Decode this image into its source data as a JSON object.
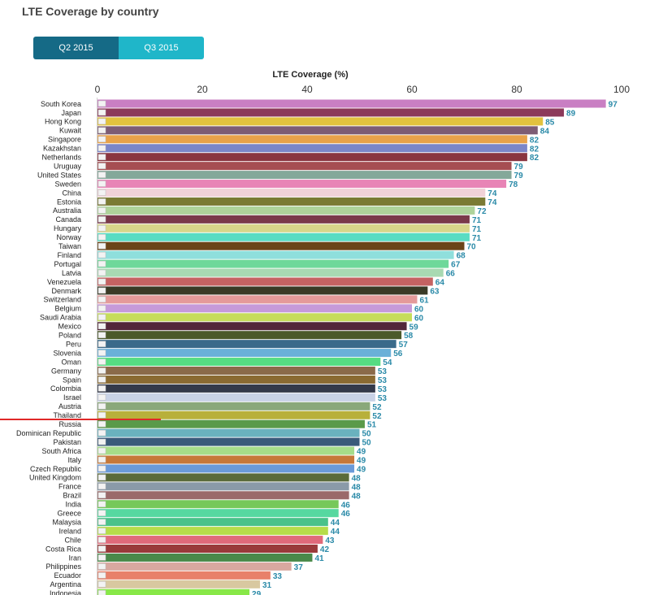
{
  "page": {
    "title": "LTE Coverage by country"
  },
  "tabs": [
    {
      "label": "Q2 2015",
      "active": true
    },
    {
      "label": "Q3 2015",
      "active": false
    }
  ],
  "chart_data": {
    "type": "bar",
    "orientation": "horizontal",
    "xlabel": "LTE Coverage (%)",
    "xlim": [
      0,
      100
    ],
    "ticks": [
      0,
      20,
      40,
      60,
      80,
      100
    ],
    "grid": false,
    "label_color": "#2a8aa8",
    "categories": [
      "South Korea",
      "Japan",
      "Hong Kong",
      "Kuwait",
      "Singapore",
      "Kazakhstan",
      "Netherlands",
      "Uruguay",
      "United States",
      "Sweden",
      "China",
      "Estonia",
      "Australia",
      "Canada",
      "Hungary",
      "Norway",
      "Taiwan",
      "Finland",
      "Portugal",
      "Latvia",
      "Venezuela",
      "Denmark",
      "Switzerland",
      "Belgium",
      "Saudi Arabia",
      "Mexico",
      "Poland",
      "Peru",
      "Slovenia",
      "Oman",
      "Germany",
      "Spain",
      "Colombia",
      "Israel",
      "Austria",
      "Thailand",
      "Russia",
      "Dominican Republic",
      "Pakistan",
      "South Africa",
      "Italy",
      "Czech Republic",
      "United Kingdom",
      "France",
      "Brazil",
      "India",
      "Greece",
      "Malaysia",
      "Ireland",
      "Chile",
      "Costa Rica",
      "Iran",
      "Philippines",
      "Ecuador",
      "Argentina",
      "Indonesia"
    ],
    "values": [
      97,
      89,
      85,
      84,
      82,
      82,
      82,
      79,
      79,
      78,
      74,
      74,
      72,
      71,
      71,
      71,
      70,
      68,
      67,
      66,
      64,
      63,
      61,
      60,
      60,
      59,
      58,
      57,
      56,
      54,
      53,
      53,
      53,
      53,
      52,
      52,
      51,
      50,
      50,
      49,
      49,
      49,
      48,
      48,
      48,
      46,
      46,
      44,
      44,
      43,
      42,
      41,
      37,
      33,
      31,
      29
    ],
    "colors": [
      "#c97fc3",
      "#8c3a5a",
      "#e2c23e",
      "#7d5c74",
      "#e8a24a",
      "#7b86c9",
      "#8a3540",
      "#a64e52",
      "#84a89a",
      "#e884b6",
      "#f1d2d8",
      "#7a7a33",
      "#aed39a",
      "#7a3a4a",
      "#d8d68a",
      "#5adcc3",
      "#6a4418",
      "#8fdfdc",
      "#6ed89a",
      "#a8d9b2",
      "#c56262",
      "#3a3a26",
      "#e49a9a",
      "#c69ad9",
      "#c6dd5a",
      "#53283a",
      "#4c5a2a",
      "#3a6a8a",
      "#6ab0d8",
      "#56dc82",
      "#8a6a4a",
      "#8a6a32",
      "#343a4a",
      "#c8d2e6",
      "#8aa87a",
      "#b8b03a",
      "#5a9a4a",
      "#6ab2be",
      "#3a5a7a",
      "#a6dc8a",
      "#c6783a",
      "#6a9ad9",
      "#5a6a3a",
      "#8a9aa8",
      "#9a6a6a",
      "#76c85a",
      "#56d8a0",
      "#4ac28a",
      "#b6dc4a",
      "#e06a7a",
      "#9a3a3a",
      "#4a8a4a",
      "#d8a8a0",
      "#e8806a",
      "#d8c8a0",
      "#88e848"
    ]
  }
}
